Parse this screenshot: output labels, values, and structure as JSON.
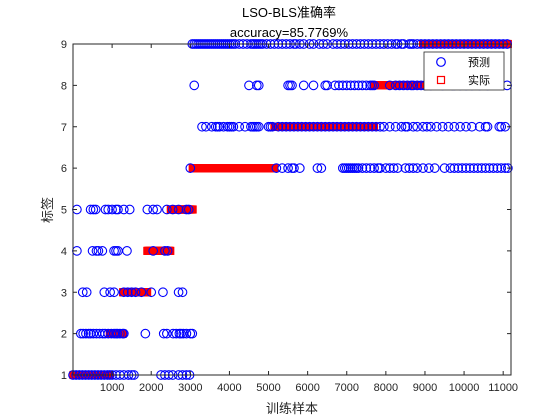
{
  "chart_data": {
    "type": "scatter",
    "title": "LSO-BLS准确率",
    "subtitle": "accuracy=85.7769%",
    "xlabel": "训练样本",
    "ylabel": "标签",
    "xlim": [
      0,
      11200
    ],
    "ylim": [
      1,
      9
    ],
    "xticks": [
      1000,
      2000,
      3000,
      4000,
      5000,
      6000,
      7000,
      8000,
      9000,
      10000,
      11000
    ],
    "yticks": [
      1,
      2,
      3,
      4,
      5,
      6,
      7,
      8,
      9
    ],
    "grid": false,
    "legend_position": "top-right",
    "series": [
      {
        "name": "预测",
        "marker": "circle",
        "color": "#0000ff",
        "clusters": [
          {
            "y": 1,
            "x": [
              0,
              80,
              160,
              240,
              320,
              400,
              480,
              560,
              640,
              720,
              800,
              880,
              940,
              1000,
              1100,
              1200,
              1300,
              1420,
              1500,
              1560,
              2250,
              2350,
              2450,
              2550,
              2700,
              2800,
              2900,
              2980
            ]
          },
          {
            "y": 2,
            "x": [
              200,
              260,
              330,
              400,
              450,
              520,
              600,
              680,
              760,
              820,
              900,
              980,
              1050,
              1100,
              1140,
              1200,
              1270,
              1300,
              1850,
              2320,
              2400,
              2560,
              2640,
              2720,
              2760,
              2820,
              2900,
              3000,
              3050
            ]
          },
          {
            "y": 3,
            "x": [
              250,
              350,
              800,
              950,
              1050,
              1300,
              1400,
              1500,
              1600,
              1750,
              2000,
              2300,
              2700,
              2800
            ]
          },
          {
            "y": 4,
            "x": [
              100,
              500,
              600,
              650,
              750,
              1050,
              1100,
              1150,
              1380,
              2050,
              2350,
              2420
            ]
          },
          {
            "y": 5,
            "x": [
              100,
              450,
              520,
              580,
              830,
              900,
              1000,
              1100,
              1150,
              1300,
              1450,
              1900,
              2050,
              2150,
              2400,
              2550,
              2700,
              2900,
              2960
            ]
          },
          {
            "y": 6,
            "x": [
              3000,
              5200,
              5350,
              5500,
              5600,
              5650,
              5800,
              6250,
              6350,
              6900,
              6950,
              7000,
              7050,
              7100,
              7150,
              7200,
              7250,
              7300,
              7400,
              7500,
              7600,
              7700,
              7800,
              7850,
              8000,
              8100,
              8200,
              8300,
              8500,
              8600,
              8700,
              8800,
              8950,
              9100,
              9250,
              9500,
              9650,
              9750,
              9850,
              9950,
              10050,
              10150,
              10250,
              10350,
              10450,
              10550,
              10650,
              10750,
              10850,
              10950,
              11050,
              11120
            ]
          },
          {
            "y": 7,
            "x": [
              3300,
              3400,
              3550,
              3650,
              3700,
              3750,
              3850,
              3950,
              4000,
              4050,
              4100,
              4250,
              4400,
              4550,
              4600,
              4650,
              4700,
              4750,
              5000,
              5050,
              5100,
              5250,
              5350,
              5450,
              5550,
              5650,
              5750,
              5850,
              5950,
              6050,
              6150,
              6250,
              6350,
              6450,
              6550,
              6650,
              6750,
              6850,
              6950,
              7050,
              7150,
              7250,
              7350,
              7450,
              7550,
              7650,
              7750,
              7850,
              7950,
              8100,
              8250,
              8400,
              8500,
              8550,
              8700,
              8800,
              8950,
              9050,
              9150,
              9300,
              9450,
              9600,
              9750,
              9900,
              10050,
              10200,
              10400,
              10550,
              10600,
              10900,
              10950,
              11050
            ]
          },
          {
            "y": 8,
            "x": [
              3100,
              4500,
              4700,
              4750,
              5500,
              5550,
              5600,
              5900,
              6150,
              6450,
              6500,
              6700,
              6800,
              6900,
              7000,
              7100,
              7200,
              7300,
              7400,
              7500,
              7600,
              7650,
              7700,
              8100,
              8250,
              8350,
              8450,
              8550,
              8650,
              8700,
              8800,
              8900,
              9000,
              9150,
              9450,
              9700,
              9750,
              9900,
              10050,
              10200,
              10400,
              10600,
              11100
            ]
          },
          {
            "y": 9,
            "x": [
              3050,
              3100,
              3150,
              3200,
              3250,
              3300,
              3350,
              3400,
              3450,
              3500,
              3550,
              3600,
              3650,
              3700,
              3750,
              3800,
              3850,
              3900,
              3950,
              4000,
              4050,
              4100,
              4150,
              4250,
              4350,
              4450,
              4550,
              4600,
              4650,
              4700,
              4750,
              4800,
              4850,
              4950,
              5050,
              5150,
              5250,
              5350,
              5450,
              5550,
              5650,
              5700,
              5800,
              5900,
              6050,
              6150,
              6300,
              6400,
              6500,
              6650,
              6750,
              6850,
              6950,
              7050,
              7150,
              7250,
              7350,
              7450,
              7550,
              7650,
              7750,
              7850,
              7950,
              8050,
              8150,
              8250,
              8300,
              8400,
              8450,
              8600,
              8650,
              8700,
              8800,
              8900,
              9000,
              9100,
              9200,
              9300,
              9400,
              9500,
              9600,
              9700,
              9800,
              9900,
              10000,
              10100,
              10200,
              10300,
              10400,
              10500,
              10600,
              10700,
              10800,
              10900,
              11000,
              11100
            ]
          }
        ]
      },
      {
        "name": "实际",
        "marker": "square",
        "color": "#ff0000",
        "ranges": [
          {
            "y": 1,
            "x": [
              10,
              940
            ]
          },
          {
            "y": 2,
            "x": [
              940,
              1280
            ]
          },
          {
            "y": 3,
            "x": [
              1280,
              1900
            ]
          },
          {
            "y": 4,
            "x": [
              1900,
              2500
            ]
          },
          {
            "y": 5,
            "x": [
              2500,
              3060
            ]
          },
          {
            "y": 6,
            "x": [
              3060,
              5150
            ]
          },
          {
            "y": 7,
            "x": [
              5150,
              7700
            ]
          },
          {
            "y": 8,
            "x": [
              7700,
              8950
            ]
          },
          {
            "y": 9,
            "x": [
              8950,
              11120
            ]
          }
        ]
      }
    ]
  }
}
